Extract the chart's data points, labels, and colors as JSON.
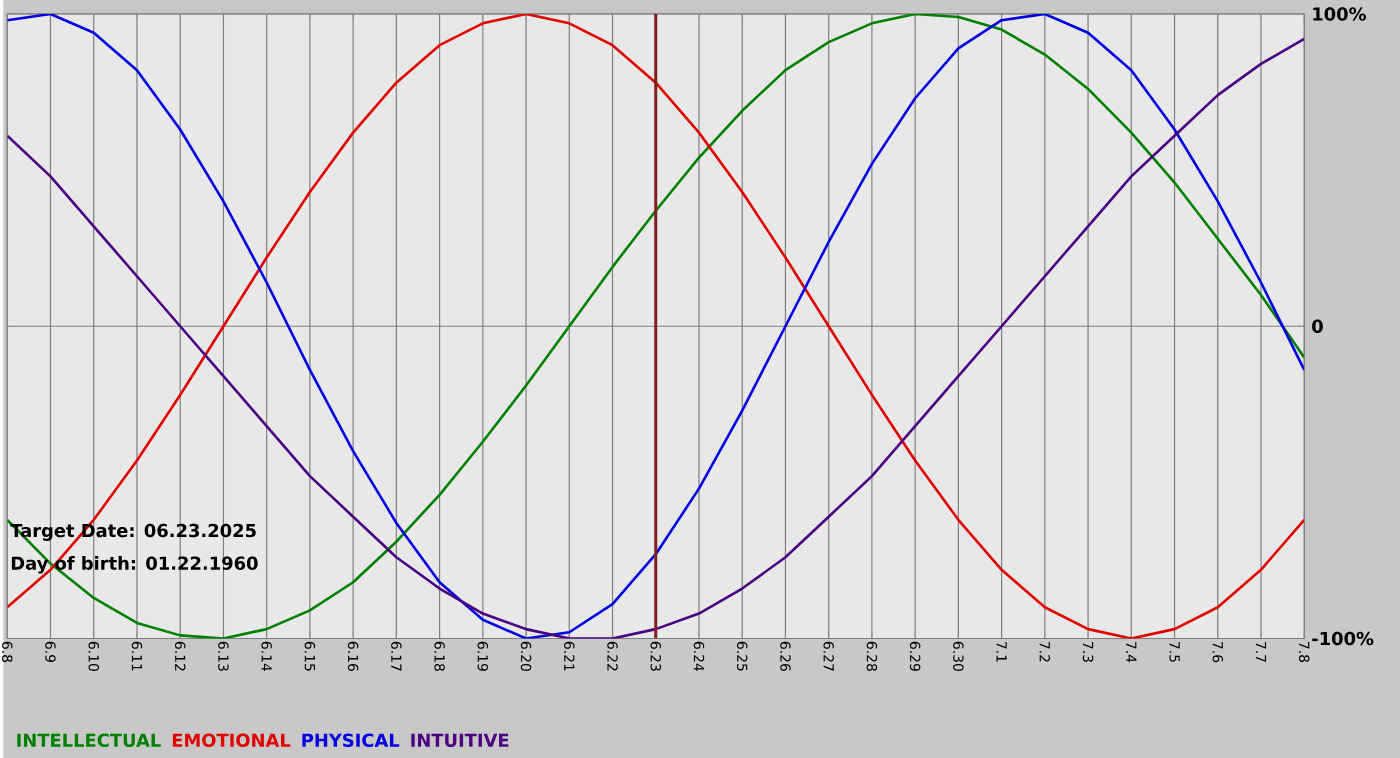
{
  "chart_data": {
    "type": "line",
    "categories": [
      "6.8",
      "6.9",
      "6.10",
      "6.11",
      "6.12",
      "6.13",
      "6.14",
      "6.15",
      "6.16",
      "6.17",
      "6.18",
      "6.19",
      "6.20",
      "6.21",
      "6.22",
      "6.23",
      "6.24",
      "6.25",
      "6.26",
      "6.27",
      "6.28",
      "6.29",
      "6.30",
      "7.1",
      "7.2",
      "7.3",
      "7.4",
      "7.5",
      "7.6",
      "7.7",
      "7.8"
    ],
    "series": [
      {
        "name": "INTELLECTUAL",
        "color": "#008000",
        "values": [
          -62,
          -76,
          -87,
          -95,
          -99,
          -100,
          -97,
          -91,
          -82,
          -69,
          -54,
          -37,
          -19,
          0,
          19,
          37,
          54,
          69,
          82,
          91,
          97,
          100,
          99,
          95,
          87,
          76,
          62,
          46,
          28,
          10,
          -10
        ]
      },
      {
        "name": "EMOTIONAL",
        "color": "#e00000",
        "values": [
          -90,
          -78,
          -62,
          -43,
          -22,
          0,
          22,
          43,
          62,
          78,
          90,
          97,
          100,
          97,
          90,
          78,
          62,
          43,
          22,
          0,
          -22,
          -43,
          -62,
          -78,
          -90,
          -97,
          -100,
          -97,
          -90,
          -78,
          -62
        ]
      },
      {
        "name": "PHYSICAL",
        "color": "#0000e0",
        "values": [
          98,
          100,
          94,
          82,
          63,
          40,
          14,
          -14,
          -40,
          -63,
          -82,
          -94,
          -100,
          -98,
          -89,
          -73,
          -52,
          -27,
          0,
          27,
          52,
          73,
          89,
          98,
          100,
          94,
          82,
          63,
          40,
          14,
          -14
        ]
      },
      {
        "name": "INTUITIVE",
        "color": "#4b0082",
        "values": [
          61,
          48,
          32,
          16,
          0,
          -16,
          -32,
          -48,
          -61,
          -74,
          -84,
          -92,
          -97,
          -100,
          -100,
          -97,
          -92,
          -84,
          -74,
          -61,
          -48,
          -32,
          -16,
          0,
          16,
          32,
          48,
          61,
          74,
          84,
          92
        ]
      }
    ],
    "ylim": [
      -100,
      100
    ],
    "yticks": [
      {
        "value": 100,
        "label": "100%"
      },
      0,
      {
        "value": -100,
        "label": "-100%"
      }
    ],
    "grid": true,
    "legend": "bottom",
    "ref_lines": [
      {
        "axis": "x",
        "value": "6.23",
        "color": "#7f1f1f"
      }
    ],
    "annotations": [
      "Target Date: 06.23.2025",
      "Day of birth: 01.22.1960"
    ]
  }
}
